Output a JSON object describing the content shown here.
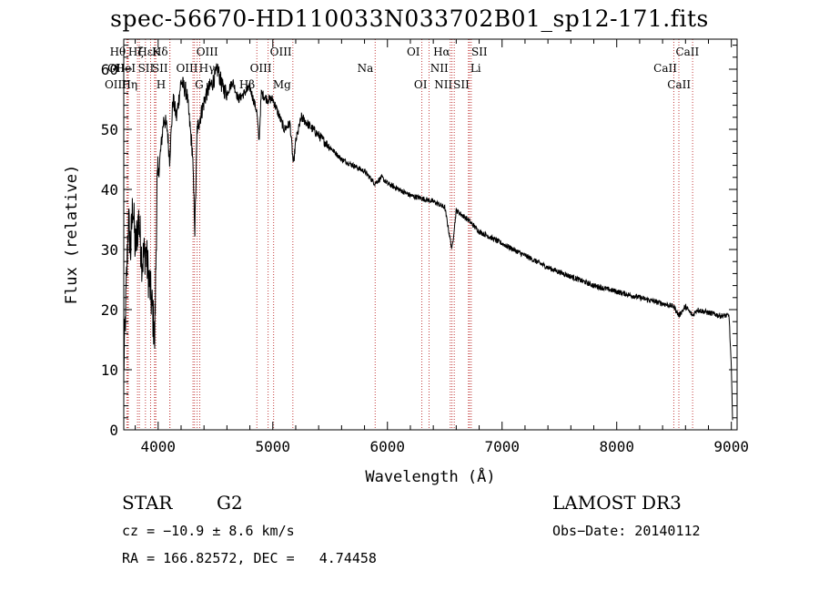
{
  "chart_data": {
    "type": "line",
    "title": "spec-56670-HD110033N033702B01_sp12-171.fits",
    "xlabel": "Wavelength (Å)",
    "ylabel": "Flux (relative)",
    "xlim": [
      3700,
      9050
    ],
    "ylim": [
      0,
      65
    ],
    "xticks": [
      4000,
      5000,
      6000,
      7000,
      8000,
      9000
    ],
    "yticks": [
      0,
      10,
      20,
      30,
      40,
      50,
      60
    ],
    "grid": false,
    "series": [
      {
        "name": "spectrum",
        "anchors": [
          [
            3700,
            10
          ],
          [
            3720,
            22
          ],
          [
            3740,
            35
          ],
          [
            3760,
            30
          ],
          [
            3780,
            38
          ],
          [
            3800,
            30
          ],
          [
            3830,
            35
          ],
          [
            3860,
            28
          ],
          [
            3890,
            30
          ],
          [
            3920,
            25
          ],
          [
            3950,
            20
          ],
          [
            3970,
            15
          ],
          [
            3990,
            40
          ],
          [
            4020,
            46
          ],
          [
            4050,
            52
          ],
          [
            4080,
            50
          ],
          [
            4100,
            45
          ],
          [
            4130,
            55
          ],
          [
            4160,
            52
          ],
          [
            4200,
            58
          ],
          [
            4250,
            56
          ],
          [
            4300,
            46
          ],
          [
            4320,
            33
          ],
          [
            4340,
            50
          ],
          [
            4380,
            53
          ],
          [
            4420,
            56
          ],
          [
            4480,
            58
          ],
          [
            4520,
            60
          ],
          [
            4560,
            57
          ],
          [
            4600,
            56
          ],
          [
            4650,
            58
          ],
          [
            4700,
            55
          ],
          [
            4750,
            56
          ],
          [
            4800,
            57
          ],
          [
            4860,
            53
          ],
          [
            4880,
            48
          ],
          [
            4900,
            56
          ],
          [
            4950,
            55
          ],
          [
            5000,
            55
          ],
          [
            5060,
            52
          ],
          [
            5100,
            50
          ],
          [
            5150,
            51
          ],
          [
            5180,
            44
          ],
          [
            5200,
            48
          ],
          [
            5250,
            52
          ],
          [
            5300,
            51
          ],
          [
            5350,
            50
          ],
          [
            5400,
            49
          ],
          [
            5450,
            48
          ],
          [
            5500,
            47
          ],
          [
            5600,
            45
          ],
          [
            5700,
            44
          ],
          [
            5800,
            43
          ],
          [
            5890,
            41
          ],
          [
            5950,
            42
          ],
          [
            6000,
            41
          ],
          [
            6100,
            40
          ],
          [
            6200,
            39
          ],
          [
            6300,
            38.5
          ],
          [
            6400,
            38
          ],
          [
            6500,
            37
          ],
          [
            6563,
            30
          ],
          [
            6600,
            36.5
          ],
          [
            6700,
            35
          ],
          [
            6800,
            33
          ],
          [
            6900,
            32
          ],
          [
            7000,
            31
          ],
          [
            7200,
            29
          ],
          [
            7400,
            27
          ],
          [
            7600,
            25.5
          ],
          [
            7800,
            24
          ],
          [
            8000,
            23
          ],
          [
            8200,
            22
          ],
          [
            8400,
            21
          ],
          [
            8500,
            20.5
          ],
          [
            8542,
            19
          ],
          [
            8600,
            20.5
          ],
          [
            8662,
            19
          ],
          [
            8700,
            20
          ],
          [
            8800,
            19.5
          ],
          [
            8900,
            19
          ],
          [
            8980,
            19
          ],
          [
            9000,
            10
          ],
          [
            9010,
            2
          ]
        ]
      }
    ],
    "lines": [
      {
        "wl": 3734,
        "label": "Hθ",
        "row": 0,
        "side": "left"
      },
      {
        "wl": 3727,
        "label": "OII",
        "row": 1,
        "side": "left"
      },
      {
        "wl": 3740,
        "label": "OIII",
        "row": 2,
        "side": "left"
      },
      {
        "wl": 3889,
        "label": "Hζ",
        "row": 0,
        "side": "left"
      },
      {
        "wl": 3934,
        "label": "K",
        "row": 0,
        "side": "right"
      },
      {
        "wl": 3968,
        "label": "H",
        "row": 2,
        "side": "right"
      },
      {
        "wl": 3820,
        "label": "HeI",
        "row": 1,
        "side": "left"
      },
      {
        "wl": 3970,
        "label": "Hε",
        "row": 0,
        "side": "left"
      },
      {
        "wl": 3980,
        "label": "SII",
        "row": 1,
        "side": "left"
      },
      {
        "wl": 3836,
        "label": "Hη",
        "row": 2,
        "side": "left"
      },
      {
        "wl": 4102,
        "label": "Hδ",
        "row": 0,
        "side": "left"
      },
      {
        "wl": 4102,
        "label": "SII",
        "row": 1,
        "side": "left"
      },
      {
        "wl": 4317,
        "label": "OIII",
        "row": 0,
        "side": "right"
      },
      {
        "wl": 4340,
        "label": "Hγ",
        "row": 1,
        "side": "right"
      },
      {
        "wl": 4304,
        "label": "G",
        "row": 2,
        "side": "right"
      },
      {
        "wl": 4363,
        "label": "OIII",
        "row": 1,
        "side": "left"
      },
      {
        "wl": 4861,
        "label": "Hβ",
        "row": 2,
        "side": "left"
      },
      {
        "wl": 4959,
        "label": "OIII",
        "row": 0,
        "side": "right"
      },
      {
        "wl": 5007,
        "label": "OIII",
        "row": 1,
        "side": "left"
      },
      {
        "wl": 5175,
        "label": "Mg",
        "row": 2,
        "side": "left"
      },
      {
        "wl": 5893,
        "label": "Na",
        "row": 1,
        "side": "left"
      },
      {
        "wl": 6300,
        "label": "OI",
        "row": 0,
        "side": "left"
      },
      {
        "wl": 6363,
        "label": "OI",
        "row": 2,
        "side": "left"
      },
      {
        "wl": 6548,
        "label": "NII",
        "row": 1,
        "side": "left"
      },
      {
        "wl": 6563,
        "label": "Hα",
        "row": 0,
        "side": "left"
      },
      {
        "wl": 6583,
        "label": "NII",
        "row": 2,
        "side": "left"
      },
      {
        "wl": 6707,
        "label": "Li",
        "row": 1,
        "side": "right"
      },
      {
        "wl": 6716,
        "label": "SII",
        "row": 0,
        "side": "right"
      },
      {
        "wl": 6731,
        "label": "SII",
        "row": 2,
        "side": "left"
      },
      {
        "wl": 8498,
        "label": "CaII",
        "row": 0,
        "side": "right"
      },
      {
        "wl": 8542,
        "label": "CaII",
        "row": 1,
        "side": "left"
      },
      {
        "wl": 8662,
        "label": "CaII",
        "row": 2,
        "side": "left"
      }
    ]
  },
  "info": {
    "object_class": "STAR",
    "subclass": "G2",
    "survey": "LAMOST DR3",
    "cz": "cz = −10.9 ± 8.6 km/s",
    "obs_date": "Obs−Date: 20140112",
    "radec": "RA = 166.82572, DEC =   4.74458"
  },
  "colors": {
    "line_markers": "#c23b3b",
    "spectrum": "#000000"
  }
}
